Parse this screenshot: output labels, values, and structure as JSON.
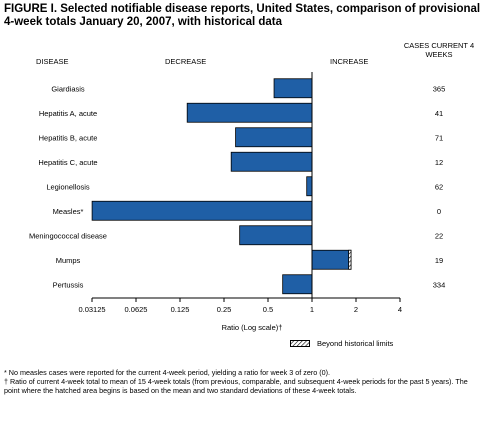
{
  "figure": {
    "title": "FIGURE I. Selected notifiable disease reports, United States, comparison of provisional 4-week totals January 20, 2007, with historical data"
  },
  "headers": {
    "disease": "DISEASE",
    "decrease": "DECREASE",
    "increase": "INCREASE",
    "cases": "CASES CURRENT 4 WEEKS"
  },
  "legend": {
    "label": "Beyond historical limits"
  },
  "footnotes": {
    "note1": "* No measles cases were reported for the current 4-week period, yielding a ratio for week 3 of zero (0).",
    "note2": "† Ratio of current 4-week total to mean of 15 4-week totals (from previous, comparable, and subsequent 4-week periods for the past 5 years). The point where the hatched area begins is based on the mean and two standard deviations of these 4-week totals."
  },
  "colors": {
    "bar_fill": "#1f5fa6",
    "bar_stroke": "#000000",
    "hatch": "#000000"
  },
  "chart_data": {
    "type": "bar",
    "orientation": "horizontal",
    "xscale": "log2",
    "xlim": [
      0.03125,
      4
    ],
    "xlabel": "Ratio (Log scale)†",
    "xticks": [
      0.03125,
      0.0625,
      0.125,
      0.25,
      0.5,
      1,
      2,
      4
    ],
    "xtick_labels": [
      "0.03125",
      "0.0625",
      "0.125",
      "0.25",
      "0.5",
      "1",
      "2",
      "4"
    ],
    "baseline": 1,
    "categories": [
      "Giardiasis",
      "Hepatitis A, acute",
      "Hepatitis B, acute",
      "Hepatitis C, acute",
      "Legionellosis",
      "Measles*",
      "Meningococcal disease",
      "Mumps",
      "Pertussis"
    ],
    "values": [
      0.55,
      0.14,
      0.3,
      0.28,
      0.92,
      0.0313,
      0.32,
      1.85,
      0.63
    ],
    "cases": [
      "365",
      "41",
      "71",
      "12",
      "62",
      "0",
      "22",
      "19",
      "334"
    ],
    "beyond_historical_limits": [
      null,
      null,
      null,
      null,
      null,
      null,
      null,
      {
        "from": 1.78,
        "to": 1.85
      },
      null
    ]
  }
}
